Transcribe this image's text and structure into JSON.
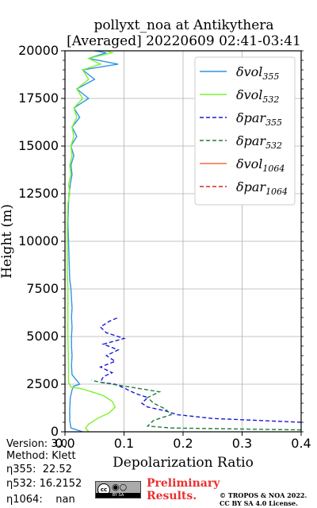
{
  "header": {
    "title_line1": "pollyxt_noa at Antikythera",
    "title_line2": "[Averaged] 20220609 02:41-03:41"
  },
  "info": {
    "version": "Version: 3.0",
    "method": "Method: Klett",
    "eta355": "η355:  22.52",
    "eta532": "η532: 16.2152",
    "eta1064": "η1064:    nan"
  },
  "footer": {
    "preliminary_line1": "Preliminary",
    "preliminary_line2": "Results.",
    "copyright_line1": "© TROPOS & NOA 2022.",
    "copyright_line2": "CC BY SA 4.0 License.",
    "license_badge": "BY SA"
  },
  "chart_data": {
    "type": "line",
    "xlabel": "Depolarization Ratio",
    "ylabel": "Height (m)",
    "xlim": [
      0.0,
      0.4
    ],
    "ylim": [
      0,
      20000
    ],
    "xticks": [
      "0.0",
      "0.1",
      "0.2",
      "0.3",
      "0.4"
    ],
    "yticks": [
      "0",
      "2500",
      "5000",
      "7500",
      "10000",
      "12500",
      "15000",
      "17500",
      "20000"
    ],
    "grid": true,
    "legend_position": "top-right",
    "series": [
      {
        "name": "δvol,355",
        "color": "#2f94e6",
        "style": "solid",
        "points": [
          [
            0.03,
            0
          ],
          [
            0.01,
            200
          ],
          [
            0.008,
            600
          ],
          [
            0.008,
            1200
          ],
          [
            0.009,
            1800
          ],
          [
            0.012,
            2200
          ],
          [
            0.015,
            2400
          ],
          [
            0.025,
            2500
          ],
          [
            0.012,
            3000
          ],
          [
            0.011,
            3500
          ],
          [
            0.012,
            4000
          ],
          [
            0.011,
            4500
          ],
          [
            0.011,
            5000
          ],
          [
            0.012,
            5500
          ],
          [
            0.011,
            6000
          ],
          [
            0.012,
            6500
          ],
          [
            0.011,
            7000
          ],
          [
            0.01,
            7500
          ],
          [
            0.008,
            8000
          ],
          [
            0.007,
            9000
          ],
          [
            0.006,
            10000
          ],
          [
            0.005,
            11000
          ],
          [
            0.006,
            12000
          ],
          [
            0.007,
            12500
          ],
          [
            0.009,
            13000
          ],
          [
            0.012,
            13500
          ],
          [
            0.01,
            14000
          ],
          [
            0.015,
            14500
          ],
          [
            0.01,
            15000
          ],
          [
            0.02,
            15500
          ],
          [
            0.012,
            16000
          ],
          [
            0.025,
            16500
          ],
          [
            0.015,
            17000
          ],
          [
            0.04,
            17500
          ],
          [
            0.02,
            18000
          ],
          [
            0.05,
            18500
          ],
          [
            0.03,
            19000
          ],
          [
            0.09,
            19300
          ],
          [
            0.04,
            19600
          ],
          [
            0.07,
            19900
          ],
          [
            0.05,
            20000
          ]
        ]
      },
      {
        "name": "δvol,532",
        "color": "#7cf22a",
        "style": "solid",
        "points": [
          [
            0.04,
            0
          ],
          [
            0.035,
            200
          ],
          [
            0.04,
            400
          ],
          [
            0.055,
            700
          ],
          [
            0.075,
            1000
          ],
          [
            0.085,
            1300
          ],
          [
            0.08,
            1600
          ],
          [
            0.065,
            1900
          ],
          [
            0.045,
            2100
          ],
          [
            0.03,
            2250
          ],
          [
            0.01,
            2350
          ],
          [
            0.006,
            2600
          ],
          [
            0.006,
            3500
          ],
          [
            0.005,
            5000
          ],
          [
            0.005,
            6500
          ],
          [
            0.005,
            7500
          ],
          [
            0.004,
            8500
          ],
          [
            0.004,
            10000
          ],
          [
            0.004,
            11000
          ],
          [
            0.005,
            12000
          ],
          [
            0.008,
            12500
          ],
          [
            0.006,
            13000
          ],
          [
            0.01,
            13500
          ],
          [
            0.008,
            14000
          ],
          [
            0.012,
            14500
          ],
          [
            0.01,
            15000
          ],
          [
            0.015,
            15500
          ],
          [
            0.012,
            16000
          ],
          [
            0.02,
            16500
          ],
          [
            0.015,
            17000
          ],
          [
            0.03,
            17500
          ],
          [
            0.02,
            18000
          ],
          [
            0.04,
            18500
          ],
          [
            0.03,
            19000
          ],
          [
            0.06,
            19300
          ],
          [
            0.04,
            19600
          ],
          [
            0.08,
            19900
          ],
          [
            0.07,
            20000
          ]
        ]
      },
      {
        "name": "δpar,355",
        "color": "#1a1ad6",
        "style": "dashed",
        "points": [
          [
            0.4,
            500
          ],
          [
            0.25,
            700
          ],
          [
            0.19,
            900
          ],
          [
            0.17,
            1100
          ],
          [
            0.14,
            1300
          ],
          [
            0.13,
            1500
          ],
          [
            0.14,
            1800
          ],
          [
            0.12,
            2000
          ],
          [
            0.1,
            2300
          ],
          [
            0.085,
            2500
          ],
          [
            0.06,
            2600
          ],
          [
            0.065,
            2900
          ],
          [
            0.08,
            3100
          ],
          [
            0.06,
            3400
          ],
          [
            0.085,
            3700
          ],
          [
            0.07,
            4000
          ],
          [
            0.09,
            4300
          ],
          [
            0.065,
            4600
          ],
          [
            0.1,
            4900
          ],
          [
            0.07,
            5200
          ],
          [
            0.06,
            5500
          ],
          [
            0.075,
            5800
          ],
          [
            0.09,
            6000
          ]
        ]
      },
      {
        "name": "δpar,532",
        "color": "#1d7d3a",
        "style": "dashed",
        "points": [
          [
            0.4,
            100
          ],
          [
            0.18,
            200
          ],
          [
            0.14,
            300
          ],
          [
            0.15,
            600
          ],
          [
            0.18,
            900
          ],
          [
            0.17,
            1200
          ],
          [
            0.15,
            1500
          ],
          [
            0.14,
            1800
          ],
          [
            0.16,
            2100
          ],
          [
            0.1,
            2400
          ],
          [
            0.06,
            2600
          ],
          [
            0.045,
            2700
          ]
        ]
      },
      {
        "name": "δvol,1064",
        "color": "#f56a4b",
        "style": "solid",
        "points": []
      },
      {
        "name": "δpar,1064",
        "color": "#d6262b",
        "style": "dashed",
        "points": []
      }
    ]
  }
}
